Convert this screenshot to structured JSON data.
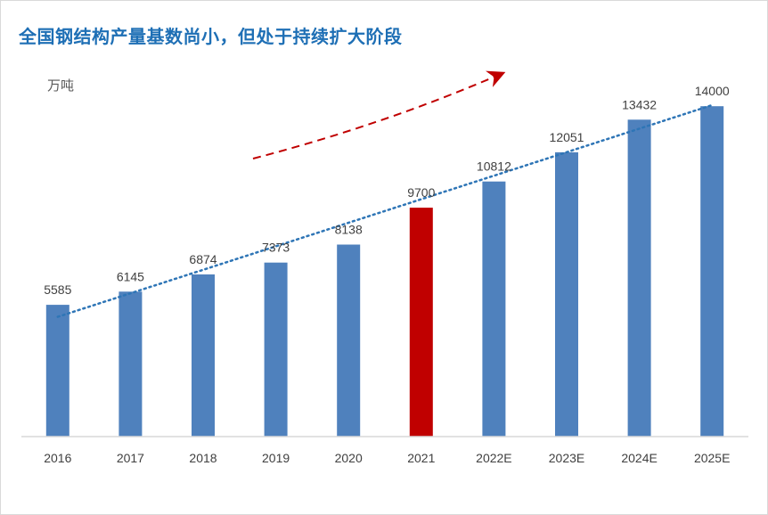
{
  "chart_data": {
    "type": "bar",
    "title": "全国钢结构产量基数尚小，但处于持续扩大阶段",
    "unit_label": "万吨",
    "categories": [
      "2016",
      "2017",
      "2018",
      "2019",
      "2020",
      "2021",
      "2022E",
      "2023E",
      "2024E",
      "2025E"
    ],
    "values": [
      5585,
      6145,
      6874,
      7373,
      8138,
      9700,
      10812,
      12051,
      13432,
      14000
    ],
    "value_labels": [
      "5585",
      "6145",
      "6874",
      "7373",
      "8138",
      "9700",
      "10812",
      "12051",
      "13432",
      "14000"
    ],
    "ylim": [
      0,
      14500
    ],
    "highlight_index": 5,
    "colors": {
      "bar": "#4f81bd",
      "highlight_bar": "#c00000",
      "trendline": "#2e75b6",
      "arrow": "#c00000",
      "title": "#1e6fb5"
    },
    "trendline": "dotted linear trend",
    "annotation": "red dashed curved upward arrow"
  }
}
